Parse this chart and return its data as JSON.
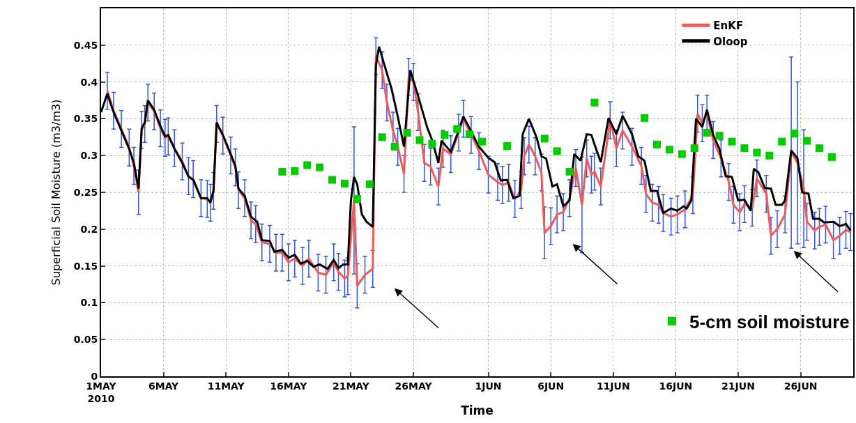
{
  "chart_data": {
    "type": "line",
    "xlabel": "Time",
    "ylabel": "Superficial Soil Moisture (m3/m3)",
    "xlim": [
      "2010-05-01",
      "2010-06-30T05:00"
    ],
    "xticks": [
      {
        "value": "2010-05-01",
        "label": "1MAY\n2010"
      },
      {
        "value": "2010-05-06",
        "label": "6MAY"
      },
      {
        "value": "2010-05-11",
        "label": "11MAY"
      },
      {
        "value": "2010-05-16",
        "label": "16MAY"
      },
      {
        "value": "2010-05-21",
        "label": "21MAY"
      },
      {
        "value": "2010-05-26",
        "label": "26MAY"
      },
      {
        "value": "2010-06-01",
        "label": "1JUN"
      },
      {
        "value": "2010-06-06",
        "label": "6JUN"
      },
      {
        "value": "2010-06-11",
        "label": "11JUN"
      },
      {
        "value": "2010-06-16",
        "label": "16JUN"
      },
      {
        "value": "2010-06-21",
        "label": "21JUN"
      },
      {
        "value": "2010-06-26",
        "label": "26JUN"
      }
    ],
    "ylim": [
      0,
      0.5
    ],
    "yticks": [
      0,
      0.05,
      0.1,
      0.15,
      0.2,
      0.25,
      0.3,
      0.35,
      0.4,
      0.45
    ],
    "grid": true,
    "legend": "top right",
    "series": [
      {
        "name": "EnKF",
        "color": "#f05a5a",
        "x": [
          "2010-05-01T12:00",
          "2010-05-02T00:00",
          "2010-05-02T15:00",
          "2010-05-03T06:00",
          "2010-05-03T15:00",
          "2010-05-04T00:00",
          "2010-05-04T06:00",
          "2010-05-04T12:00",
          "2010-05-04T18:00",
          "2010-05-05T06:00",
          "2010-05-05T18:00",
          "2010-05-06T03:00",
          "2010-05-06T09:00",
          "2010-05-06T21:00",
          "2010-05-07T12:00",
          "2010-05-08T00:00",
          "2010-05-08T09:00",
          "2010-05-09T00:00",
          "2010-05-09T12:00",
          "2010-05-09T18:00",
          "2010-05-10T00:00",
          "2010-05-10T06:00",
          "2010-05-10T18:00",
          "2010-05-11T09:00",
          "2010-05-11T18:00",
          "2010-05-12T00:00",
          "2010-05-12T12:00",
          "2010-05-13T00:00",
          "2010-05-13T09:00",
          "2010-05-13T21:00",
          "2010-05-14T12:00",
          "2010-05-15T00:00",
          "2010-05-15T12:00",
          "2010-05-16T00:00",
          "2010-05-16T12:00",
          "2010-05-17T03:00",
          "2010-05-17T15:00",
          "2010-05-18T09:00",
          "2010-05-19T00:00",
          "2010-05-19T15:00",
          "2010-05-20T00:00",
          "2010-05-20T12:00",
          "2010-05-20T18:00",
          "2010-05-21T06:00",
          "2010-05-21T12:00",
          "2010-05-22T03:00",
          "2010-05-22T18:00",
          "2010-05-23T00:00",
          "2010-05-23T12:00",
          "2010-05-23T21:00",
          "2010-05-24T09:00",
          "2010-05-24T18:00",
          "2010-05-25T06:00",
          "2010-05-25T15:00",
          "2010-05-26T00:00",
          "2010-05-26T09:00",
          "2010-05-26T21:00",
          "2010-05-27T09:00",
          "2010-05-28T00:00",
          "2010-05-28T09:00",
          "2010-05-29T00:00",
          "2010-05-29T15:00",
          "2010-05-30T00:00",
          "2010-05-30T15:00",
          "2010-05-31T06:00",
          "2010-06-01T00:00",
          "2010-06-01T18:00",
          "2010-06-02T03:00",
          "2010-06-02T15:00",
          "2010-06-03T03:00",
          "2010-06-03T15:00",
          "2010-06-03T21:00",
          "2010-06-04T06:00",
          "2010-06-04T18:00",
          "2010-06-05T06:00",
          "2010-06-05T12:00",
          "2010-06-06T00:00",
          "2010-06-06T12:00",
          "2010-06-07T00:00",
          "2010-06-07T12:00",
          "2010-06-08T00:00",
          "2010-06-08T12:00",
          "2010-06-08T21:00",
          "2010-06-09T06:00",
          "2010-06-09T12:00",
          "2010-06-10T00:00",
          "2010-06-10T18:00",
          "2010-06-11T06:00",
          "2010-06-11T18:00",
          "2010-06-12T12:00",
          "2010-06-13T06:00",
          "2010-06-13T15:00",
          "2010-06-14T03:00",
          "2010-06-14T15:00",
          "2010-06-15T00:00",
          "2010-06-15T15:00",
          "2010-06-16T03:00",
          "2010-06-16T18:00",
          "2010-06-17T09:00",
          "2010-06-17T18:00",
          "2010-06-18T03:00",
          "2010-06-18T12:00",
          "2010-06-19T00:00",
          "2010-06-19T15:00",
          "2010-06-20T06:00",
          "2010-06-20T15:00",
          "2010-06-21T03:00",
          "2010-06-21T12:00",
          "2010-06-22T03:00",
          "2010-06-22T12:00",
          "2010-06-23T06:00",
          "2010-06-23T15:00",
          "2010-06-24T03:00",
          "2010-06-24T18:00",
          "2010-06-25T06:00",
          "2010-06-25T18:00",
          "2010-06-26T06:00",
          "2010-06-26T12:00",
          "2010-06-27T03:00",
          "2010-06-27T12:00",
          "2010-06-28T00:00",
          "2010-06-28T15:00",
          "2010-06-29T03:00",
          "2010-06-29T15:00",
          "2010-06-30T00:00"
        ],
        "values": [
          0.388,
          0.361,
          0.336,
          0.311,
          0.286,
          0.25,
          0.335,
          0.343,
          0.372,
          0.36,
          0.337,
          0.324,
          0.326,
          0.31,
          0.292,
          0.272,
          0.268,
          0.242,
          0.241,
          0.236,
          0.252,
          0.343,
          0.327,
          0.3,
          0.284,
          0.253,
          0.242,
          0.212,
          0.207,
          0.182,
          0.18,
          0.168,
          0.168,
          0.155,
          0.16,
          0.15,
          0.16,
          0.141,
          0.138,
          0.155,
          0.142,
          0.133,
          0.136,
          0.239,
          0.123,
          0.138,
          0.146,
          0.435,
          0.416,
          0.372,
          0.334,
          0.312,
          0.275,
          0.407,
          0.4,
          0.359,
          0.29,
          0.285,
          0.258,
          0.309,
          0.302,
          0.331,
          0.35,
          0.328,
          0.306,
          0.274,
          0.264,
          0.26,
          0.263,
          0.241,
          0.253,
          0.299,
          0.315,
          0.299,
          0.277,
          0.195,
          0.204,
          0.22,
          0.223,
          0.242,
          0.283,
          0.233,
          0.296,
          0.274,
          0.278,
          0.258,
          0.348,
          0.31,
          0.334,
          0.312,
          0.286,
          0.248,
          0.236,
          0.233,
          0.222,
          0.217,
          0.22,
          0.227,
          0.246,
          0.357,
          0.344,
          0.357,
          0.321,
          0.296,
          0.264,
          0.233,
          0.223,
          0.234,
          0.229,
          0.269,
          0.248,
          0.191,
          0.2,
          0.22,
          0.304,
          0.29,
          0.255,
          0.21,
          0.198,
          0.203,
          0.206,
          0.185,
          0.191,
          0.199,
          0.196
        ],
        "errors": [
          0.025,
          0.025,
          0.025,
          0.025,
          0.025,
          0.03,
          0.025,
          0.025,
          0.025,
          0.025,
          0.025,
          0.025,
          0.025,
          0.025,
          0.025,
          0.025,
          0.025,
          0.025,
          0.025,
          0.025,
          0.025,
          0.025,
          0.025,
          0.025,
          0.025,
          0.025,
          0.025,
          0.025,
          0.025,
          0.025,
          0.025,
          0.025,
          0.025,
          0.025,
          0.025,
          0.025,
          0.025,
          0.025,
          0.025,
          0.025,
          0.025,
          0.025,
          0.025,
          0.1,
          0.03,
          0.025,
          0.025,
          0.025,
          0.025,
          0.025,
          0.025,
          0.025,
          0.025,
          0.025,
          0.025,
          0.025,
          0.025,
          0.025,
          0.025,
          0.025,
          0.025,
          0.025,
          0.025,
          0.025,
          0.025,
          0.025,
          0.025,
          0.025,
          0.025,
          0.025,
          0.025,
          0.025,
          0.025,
          0.025,
          0.025,
          0.035,
          0.025,
          0.025,
          0.025,
          0.025,
          0.025,
          0.065,
          0.025,
          0.025,
          0.025,
          0.025,
          0.025,
          0.025,
          0.025,
          0.025,
          0.025,
          0.025,
          0.025,
          0.025,
          0.025,
          0.025,
          0.025,
          0.025,
          0.025,
          0.025,
          0.025,
          0.025,
          0.025,
          0.025,
          0.025,
          0.025,
          0.025,
          0.025,
          0.025,
          0.025,
          0.025,
          0.025,
          0.025,
          0.025,
          0.13,
          0.11,
          0.08,
          0.025,
          0.025,
          0.025,
          0.025,
          0.025,
          0.025,
          0.025,
          0.025
        ]
      },
      {
        "name": "Oloop",
        "color": "#000000",
        "x": [
          "2010-05-01T00:00",
          "2010-05-01T12:00",
          "2010-05-02T00:00",
          "2010-05-02T15:00",
          "2010-05-03T06:00",
          "2010-05-03T15:00",
          "2010-05-04T00:00",
          "2010-05-04T06:00",
          "2010-05-04T12:00",
          "2010-05-04T18:00",
          "2010-05-05T06:00",
          "2010-05-05T18:00",
          "2010-05-06T03:00",
          "2010-05-06T09:00",
          "2010-05-06T21:00",
          "2010-05-07T12:00",
          "2010-05-08T00:00",
          "2010-05-08T09:00",
          "2010-05-09T00:00",
          "2010-05-09T12:00",
          "2010-05-09T18:00",
          "2010-05-10T00:00",
          "2010-05-10T06:00",
          "2010-05-10T18:00",
          "2010-05-11T09:00",
          "2010-05-11T18:00",
          "2010-05-12T00:00",
          "2010-05-12T12:00",
          "2010-05-13T00:00",
          "2010-05-13T12:00",
          "2010-05-13T21:00",
          "2010-05-14T12:00",
          "2010-05-14T21:00",
          "2010-05-15T12:00",
          "2010-05-16T00:00",
          "2010-05-16T12:00",
          "2010-05-17T00:00",
          "2010-05-17T12:00",
          "2010-05-18T00:00",
          "2010-05-18T12:00",
          "2010-05-19T03:00",
          "2010-05-19T15:00",
          "2010-05-20T00:00",
          "2010-05-20T09:00",
          "2010-05-20T18:00",
          "2010-05-21T00:00",
          "2010-05-21T06:00",
          "2010-05-21T12:00",
          "2010-05-21T21:00",
          "2010-05-22T06:00",
          "2010-05-22T18:00",
          "2010-05-23T00:00",
          "2010-05-23T06:00",
          "2010-05-23T18:00",
          "2010-05-24T06:00",
          "2010-05-24T18:00",
          "2010-05-25T06:00",
          "2010-05-25T18:00",
          "2010-05-26T09:00",
          "2010-05-27T03:00",
          "2010-05-27T12:00",
          "2010-05-28T00:00",
          "2010-05-28T06:00",
          "2010-05-29T00:00",
          "2010-05-29T15:00",
          "2010-05-30T00:00",
          "2010-05-30T12:00",
          "2010-05-31T06:00",
          "2010-06-01T00:00",
          "2010-06-01T12:00",
          "2010-06-02T00:00",
          "2010-06-02T12:00",
          "2010-06-03T00:00",
          "2010-06-03T12:00",
          "2010-06-03T18:00",
          "2010-06-04T06:00",
          "2010-06-04T21:00",
          "2010-06-05T06:00",
          "2010-06-05T15:00",
          "2010-06-06T03:00",
          "2010-06-06T12:00",
          "2010-06-07T00:00",
          "2010-06-07T12:00",
          "2010-06-07T21:00",
          "2010-06-08T09:00",
          "2010-06-08T21:00",
          "2010-06-09T06:00",
          "2010-06-09T12:00",
          "2010-06-10T00:00",
          "2010-06-10T15:00",
          "2010-06-11T06:00",
          "2010-06-11T18:00",
          "2010-06-12T12:00",
          "2010-06-13T00:00",
          "2010-06-13T12:00",
          "2010-06-14T00:00",
          "2010-06-14T12:00",
          "2010-06-15T00:00",
          "2010-06-15T15:00",
          "2010-06-16T03:00",
          "2010-06-16T15:00",
          "2010-06-16T21:00",
          "2010-06-17T06:00",
          "2010-06-17T15:00",
          "2010-06-18T03:00",
          "2010-06-18T12:00",
          "2010-06-19T00:00",
          "2010-06-19T12:00",
          "2010-06-20T00:00",
          "2010-06-20T12:00",
          "2010-06-21T00:00",
          "2010-06-21T12:00",
          "2010-06-22T00:00",
          "2010-06-22T06:00",
          "2010-06-22T15:00",
          "2010-06-23T03:00",
          "2010-06-23T15:00",
          "2010-06-24T00:00",
          "2010-06-24T12:00",
          "2010-06-24T18:00",
          "2010-06-25T06:00",
          "2010-06-25T18:00",
          "2010-06-26T03:00",
          "2010-06-26T15:00",
          "2010-06-27T00:00",
          "2010-06-27T12:00",
          "2010-06-27T21:00",
          "2010-06-28T15:00",
          "2010-06-29T03:00",
          "2010-06-29T15:00",
          "2010-06-30T00:00"
        ],
        "values": [
          0.359,
          0.384,
          0.359,
          0.334,
          0.309,
          0.29,
          0.255,
          0.337,
          0.345,
          0.375,
          0.362,
          0.34,
          0.326,
          0.328,
          0.309,
          0.29,
          0.271,
          0.267,
          0.242,
          0.242,
          0.236,
          0.252,
          0.345,
          0.328,
          0.302,
          0.286,
          0.255,
          0.245,
          0.217,
          0.21,
          0.185,
          0.184,
          0.169,
          0.172,
          0.161,
          0.165,
          0.153,
          0.157,
          0.149,
          0.152,
          0.146,
          0.158,
          0.147,
          0.152,
          0.152,
          0.239,
          0.271,
          0.261,
          0.22,
          0.21,
          0.203,
          0.422,
          0.448,
          0.419,
          0.391,
          0.353,
          0.312,
          0.416,
          0.381,
          0.337,
          0.321,
          0.29,
          0.32,
          0.305,
          0.334,
          0.353,
          0.337,
          0.312,
          0.297,
          0.291,
          0.266,
          0.267,
          0.242,
          0.245,
          0.329,
          0.35,
          0.324,
          0.299,
          0.296,
          0.258,
          0.261,
          0.231,
          0.239,
          0.302,
          0.293,
          0.329,
          0.328,
          0.315,
          0.291,
          0.351,
          0.329,
          0.354,
          0.329,
          0.299,
          0.293,
          0.252,
          0.252,
          0.222,
          0.228,
          0.225,
          0.231,
          0.228,
          0.239,
          0.35,
          0.339,
          0.362,
          0.328,
          0.309,
          0.272,
          0.271,
          0.239,
          0.24,
          0.225,
          0.282,
          0.277,
          0.256,
          0.255,
          0.233,
          0.233,
          0.239,
          0.307,
          0.296,
          0.25,
          0.248,
          0.214,
          0.214,
          0.209,
          0.21,
          0.204,
          0.207,
          0.198
        ]
      },
      {
        "name": "5-cm soil moisture",
        "type": "scatter",
        "marker": "square",
        "color": "#00cc00",
        "x": [
          "2010-05-15T12:00",
          "2010-05-16T12:00",
          "2010-05-17T12:00",
          "2010-05-18T12:00",
          "2010-05-19T12:00",
          "2010-05-20T12:00",
          "2010-05-21T12:00",
          "2010-05-22T12:00",
          "2010-05-23T12:00",
          "2010-05-24T12:00",
          "2010-05-25T12:00",
          "2010-05-26T12:00",
          "2010-05-27T12:00",
          "2010-05-28T12:00",
          "2010-05-29T12:00",
          "2010-05-30T12:00",
          "2010-05-31T12:00",
          "2010-06-02T12:00",
          "2010-06-05T12:00",
          "2010-06-06T12:00",
          "2010-06-07T12:00",
          "2010-06-09T12:00",
          "2010-06-13T12:00",
          "2010-06-14T12:00",
          "2010-06-15T12:00",
          "2010-06-16T12:00",
          "2010-06-17T12:00",
          "2010-06-18T12:00",
          "2010-06-19T12:00",
          "2010-06-20T12:00",
          "2010-06-21T12:00",
          "2010-06-22T12:00",
          "2010-06-23T12:00",
          "2010-06-24T12:00",
          "2010-06-25T12:00",
          "2010-06-26T12:00",
          "2010-06-27T12:00",
          "2010-06-28T12:00"
        ],
        "values": [
          0.278,
          0.279,
          0.287,
          0.284,
          0.267,
          0.262,
          0.241,
          0.261,
          0.325,
          0.312,
          0.331,
          0.321,
          0.316,
          0.328,
          0.336,
          0.329,
          0.319,
          0.313,
          0.323,
          0.306,
          0.278,
          0.372,
          0.351,
          0.315,
          0.308,
          0.302,
          0.31,
          0.331,
          0.327,
          0.319,
          0.31,
          0.304,
          0.3,
          0.319,
          0.33,
          0.32,
          0.31,
          0.298
        ]
      }
    ]
  }
}
